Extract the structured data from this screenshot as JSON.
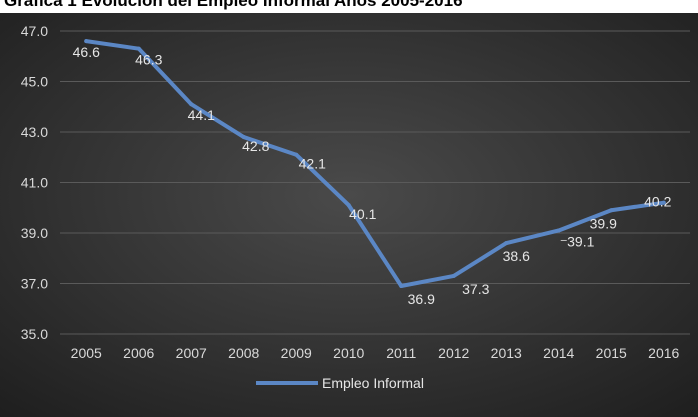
{
  "chart_data": {
    "type": "line",
    "title": "Gráfica 1 Evolución del Empleo Informal Años 2005-2016",
    "xlabel": "",
    "ylabel": "",
    "categories": [
      "2005",
      "2006",
      "2007",
      "2008",
      "2009",
      "2010",
      "2011",
      "2012",
      "2013",
      "2014",
      "2015",
      "2016"
    ],
    "series": [
      {
        "name": "Empleo Informal",
        "values": [
          46.6,
          46.3,
          44.1,
          42.8,
          42.1,
          40.1,
          36.9,
          37.3,
          38.6,
          39.1,
          39.9,
          40.2
        ],
        "labels": [
          "46.6",
          "46.3",
          "44.1",
          "42.8",
          "42.1",
          "40.1",
          "36.9",
          "37.3",
          "38.6",
          "39.1",
          "39.9",
          "40.2"
        ]
      }
    ],
    "ylim": [
      35,
      47
    ],
    "yticks": [
      "35.0",
      "37.0",
      "39.0",
      "41.0",
      "43.0",
      "45.0",
      "47.0"
    ],
    "grid": true,
    "legend": "bottom",
    "colors": {
      "line": "#5b87c5",
      "background": "#3a3a3a",
      "grid": "#5a5a5a"
    }
  }
}
